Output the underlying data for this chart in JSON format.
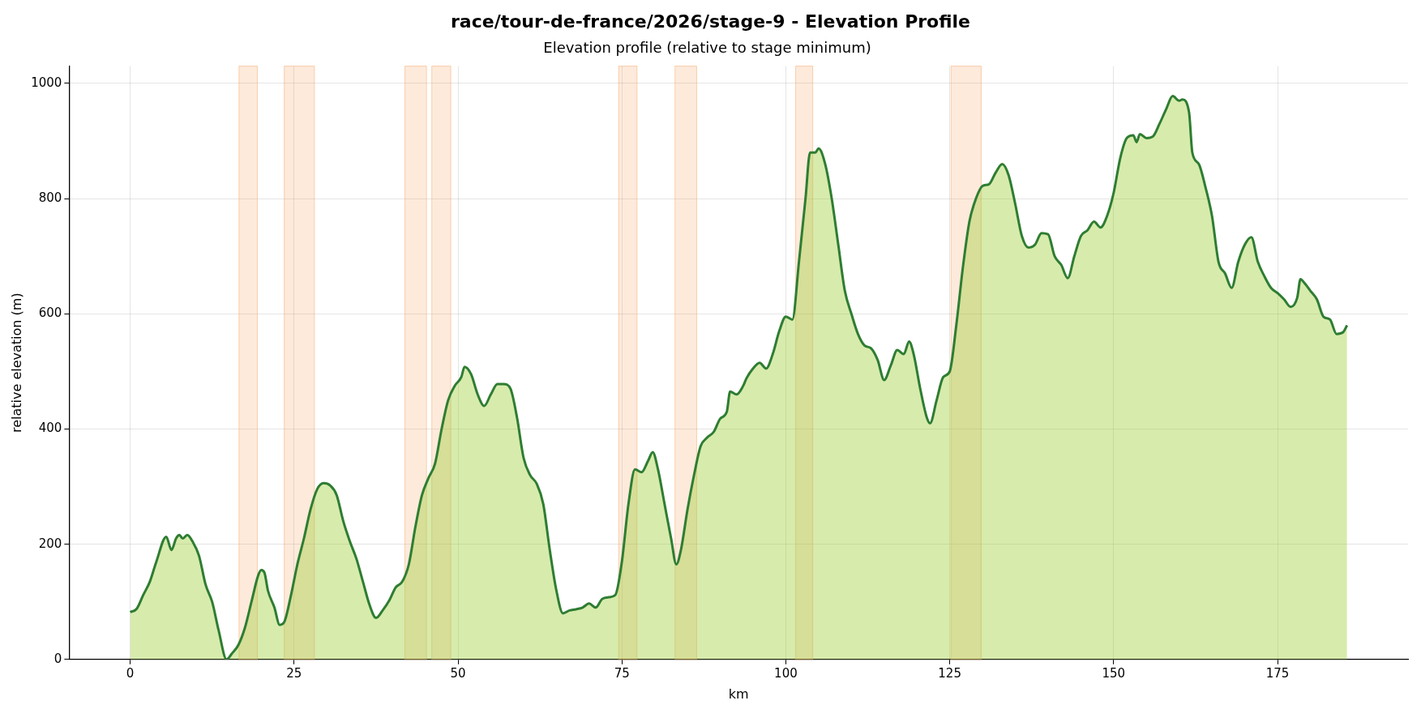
{
  "chart_data": {
    "type": "area",
    "title": "race/tour-de-france/2026/stage-9 - Elevation Profile",
    "subtitle": "Elevation profile (relative to stage minimum)",
    "xlabel": "km",
    "ylabel": "relative elevation (m)",
    "x": [
      0,
      1,
      2,
      3,
      4,
      5.5,
      6.3,
      7,
      7.5,
      8,
      8.7,
      9.5,
      10.5,
      11.5,
      12.5,
      13.5,
      14.7,
      15.5,
      16.5,
      17.5,
      18.5,
      19.5,
      20,
      20.5,
      21,
      22,
      22.8,
      23.5,
      24.5,
      25.5,
      26.5,
      27.5,
      28.5,
      29.5,
      30.5,
      31.5,
      32.5,
      33.5,
      34.5,
      35.5,
      36.5,
      37.5,
      38.5,
      39.5,
      40.5,
      41.5,
      42.5,
      43.5,
      44.5,
      45.5,
      46.5,
      47.5,
      48.5,
      49.5,
      50.5,
      51,
      52,
      53,
      54,
      55,
      56,
      57,
      58,
      59,
      60,
      61,
      62,
      63,
      64,
      65,
      66,
      67,
      68,
      69,
      70,
      71,
      72,
      73,
      74,
      75,
      76,
      77,
      78,
      79,
      79.7,
      80.5,
      81.5,
      82.5,
      83.3,
      84,
      85,
      86,
      87,
      88,
      89,
      90,
      91,
      91.5,
      92.5,
      93.5,
      94,
      95,
      96,
      97,
      98,
      99,
      100,
      101,
      102,
      103,
      103.7,
      104.5,
      105,
      106,
      107,
      108,
      109,
      110,
      111,
      112,
      113,
      114,
      115,
      116,
      117,
      118,
      118.8,
      119.5,
      120.5,
      121.5,
      122,
      123,
      124,
      125,
      126,
      127,
      128,
      129,
      130,
      131,
      132,
      133,
      134,
      135,
      136,
      137,
      138,
      139,
      140,
      141,
      142,
      143,
      144,
      145,
      146,
      147,
      148,
      149,
      150,
      151,
      152,
      153,
      153.5,
      154,
      155,
      156,
      157,
      158,
      159,
      160,
      160.5,
      161.5,
      162,
      163,
      164,
      165,
      166,
      167,
      168,
      169,
      170,
      171,
      172,
      173,
      174,
      175,
      176,
      177,
      178,
      178.5,
      179,
      180,
      181,
      182,
      183,
      184,
      185,
      185.6
    ],
    "series": [
      {
        "color": "#2e7d32",
        "values": [
          82,
          88,
          112,
          135,
          170,
          213,
          190,
          210,
          216,
          210,
          216,
          205,
          180,
          130,
          100,
          50,
          0,
          10,
          25,
          55,
          100,
          145,
          155,
          150,
          120,
          90,
          60,
          65,
          110,
          165,
          210,
          260,
          295,
          306,
          302,
          285,
          240,
          205,
          175,
          135,
          95,
          72,
          85,
          102,
          125,
          135,
          165,
          230,
          285,
          315,
          340,
          400,
          450,
          475,
          490,
          508,
          495,
          460,
          440,
          460,
          478,
          478,
          470,
          420,
          350,
          320,
          305,
          270,
          190,
          120,
          80,
          85,
          87,
          90,
          97,
          90,
          105,
          108,
          112,
          170,
          270,
          330,
          325,
          345,
          360,
          330,
          270,
          210,
          165,
          190,
          260,
          320,
          370,
          385,
          395,
          418,
          430,
          465,
          460,
          475,
          488,
          505,
          515,
          505,
          530,
          570,
          595,
          590,
          690,
          800,
          880,
          880,
          887,
          860,
          800,
          720,
          640,
          600,
          565,
          545,
          540,
          520,
          485,
          510,
          537,
          530,
          552,
          530,
          470,
          420,
          410,
          450,
          490,
          500,
          580,
          680,
          760,
          800,
          822,
          825,
          845,
          860,
          840,
          790,
          735,
          715,
          720,
          740,
          738,
          700,
          685,
          662,
          700,
          735,
          745,
          760,
          750,
          770,
          810,
          870,
          905,
          910,
          898,
          912,
          905,
          908,
          930,
          955,
          978,
          970,
          972,
          950,
          880,
          860,
          820,
          770,
          690,
          670,
          645,
          690,
          720,
          733,
          690,
          665,
          645,
          636,
          625,
          612,
          628,
          660,
          655,
          640,
          625,
          595,
          590,
          565,
          568,
          580
        ]
      }
    ],
    "bands": [
      {
        "axis": "x",
        "from": 16.6,
        "to": 19.4,
        "color": "#f5a05a"
      },
      {
        "axis": "x",
        "from": 23.5,
        "to": 28.1,
        "color": "#f5a05a"
      },
      {
        "axis": "x",
        "from": 41.9,
        "to": 45.2,
        "color": "#f5a05a"
      },
      {
        "axis": "x",
        "from": 46.0,
        "to": 48.9,
        "color": "#f5a05a"
      },
      {
        "axis": "x",
        "from": 74.5,
        "to": 77.3,
        "color": "#f5a05a"
      },
      {
        "axis": "x",
        "from": 83.1,
        "to": 86.4,
        "color": "#f5a05a"
      },
      {
        "axis": "x",
        "from": 101.5,
        "to": 104.1,
        "color": "#f5a05a"
      },
      {
        "axis": "x",
        "from": 125.2,
        "to": 129.8,
        "color": "#f5a05a"
      }
    ],
    "xlim": [
      -9.3,
      194.9
    ],
    "ylim": [
      0,
      1030
    ],
    "xticks": [
      0,
      25,
      50,
      75,
      100,
      125,
      150,
      175
    ],
    "yticks": [
      0,
      200,
      400,
      600,
      800,
      1000
    ],
    "grid": true,
    "legend": false
  }
}
